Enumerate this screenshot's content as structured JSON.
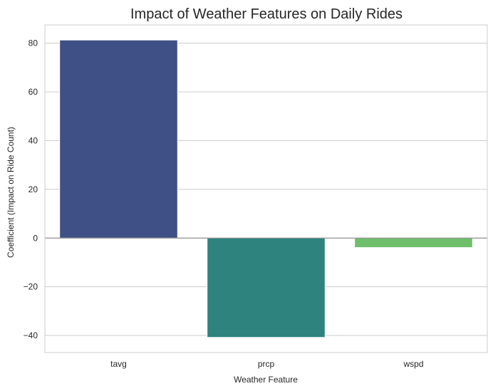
{
  "chart_data": {
    "type": "bar",
    "title": "Impact of Weather Features on Daily Rides",
    "xlabel": "Weather Feature",
    "ylabel": "Coefficient (Impact on Ride Count)",
    "categories": [
      "tavg",
      "prcp",
      "wspd"
    ],
    "values": [
      81.3,
      -40.8,
      -3.9
    ],
    "colors": [
      "#3e5085",
      "#2e837f",
      "#6ebe6c"
    ],
    "ylim": [
      -47,
      87.5
    ],
    "yticks": [
      -40,
      -20,
      0,
      20,
      40,
      60,
      80
    ],
    "grid": true,
    "legend": "none"
  }
}
